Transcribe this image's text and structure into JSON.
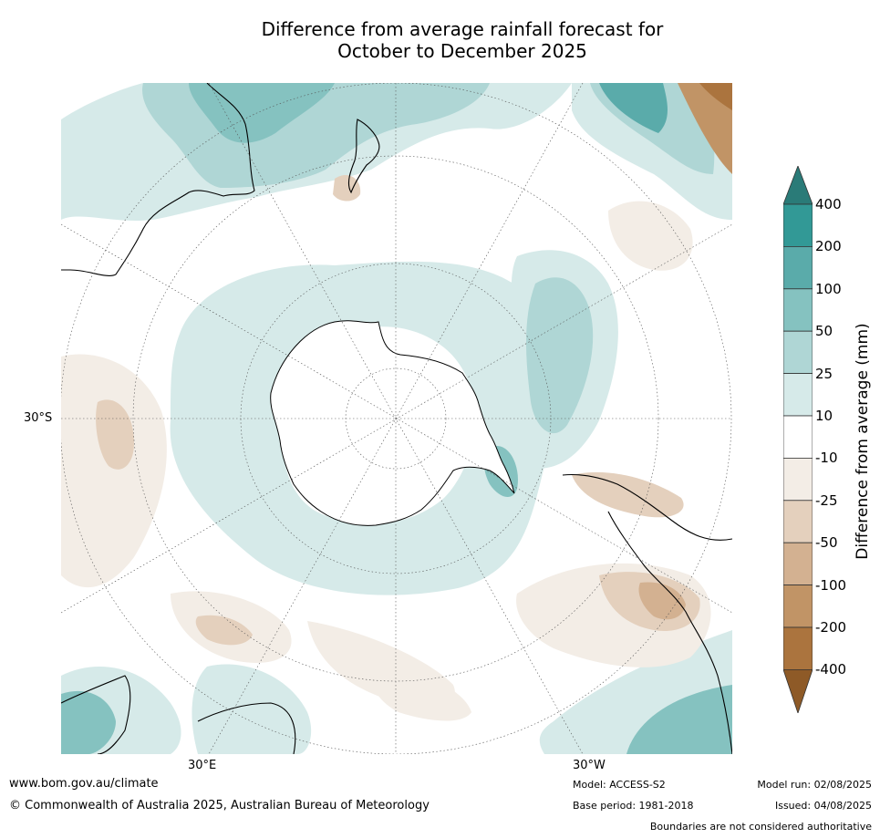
{
  "title": {
    "line1": "Difference from average rainfall forecast for",
    "line2": "October to December 2025"
  },
  "map": {
    "lat_label": "30°S",
    "lon_label_east": "30°E",
    "lon_label_west": "30°W"
  },
  "colorbar": {
    "title": "Difference from average (mm)",
    "ticks": [
      "400",
      "200",
      "100",
      "50",
      "25",
      "10",
      "-10",
      "-25",
      "-50",
      "-100",
      "-200",
      "-400"
    ],
    "colors": {
      "over": "#2a7b78",
      "wet_400": "#329996",
      "wet_200": "#5aabaa",
      "wet_100": "#85c2c0",
      "wet_50": "#afd6d5",
      "wet_25": "#d6eae9",
      "neutral": "#ffffff",
      "dry_25": "#f3ede6",
      "dry_50": "#e4d0bd",
      "dry_100": "#d3b191",
      "dry_200": "#c19466",
      "dry_400": "#ab743e",
      "under": "#8e5a27"
    }
  },
  "footer": {
    "website": "www.bom.gov.au/climate",
    "copyright": "© Commonwealth of Australia 2025, Australian Bureau of Meteorology",
    "model": "Model: ACCESS-S2",
    "base_period": "Base period: 1981-2018",
    "model_run": "Model run: 02/08/2025",
    "issued": "Issued: 04/08/2025",
    "disclaimer": "Boundaries are not considered authoritative"
  }
}
